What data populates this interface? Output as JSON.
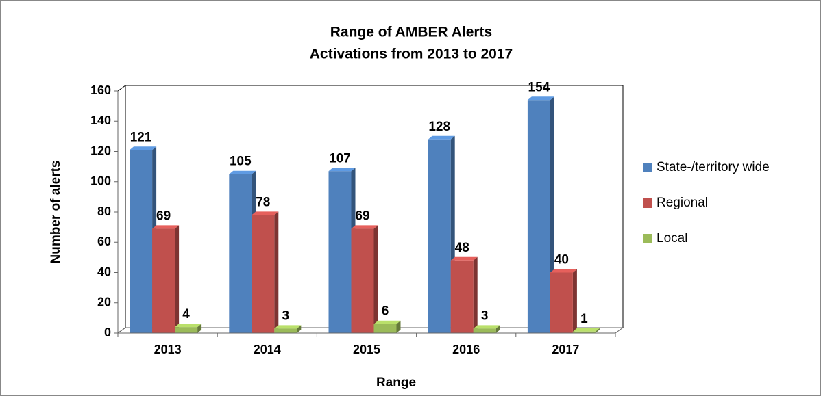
{
  "chart_data": {
    "type": "bar3d",
    "title": [
      "Range of AMBER Alerts",
      "Activations from 2013 to 2017"
    ],
    "x_label": "Range",
    "y_label": "Number of alerts",
    "categories": [
      "2013",
      "2014",
      "2015",
      "2016",
      "2017"
    ],
    "series": [
      {
        "name": "State-/territory wide",
        "color": "#4f81bd",
        "values": [
          121,
          105,
          107,
          128,
          154
        ]
      },
      {
        "name": "Regional",
        "color": "#c0504d",
        "values": [
          69,
          78,
          69,
          48,
          40
        ]
      },
      {
        "name": "Local",
        "color": "#9bbb59",
        "values": [
          4,
          3,
          6,
          3,
          1
        ]
      }
    ],
    "ylim": [
      0,
      160
    ],
    "yticks": [
      0,
      20,
      40,
      60,
      80,
      100,
      120,
      140,
      160
    ],
    "grid": false,
    "legend": "right"
  }
}
